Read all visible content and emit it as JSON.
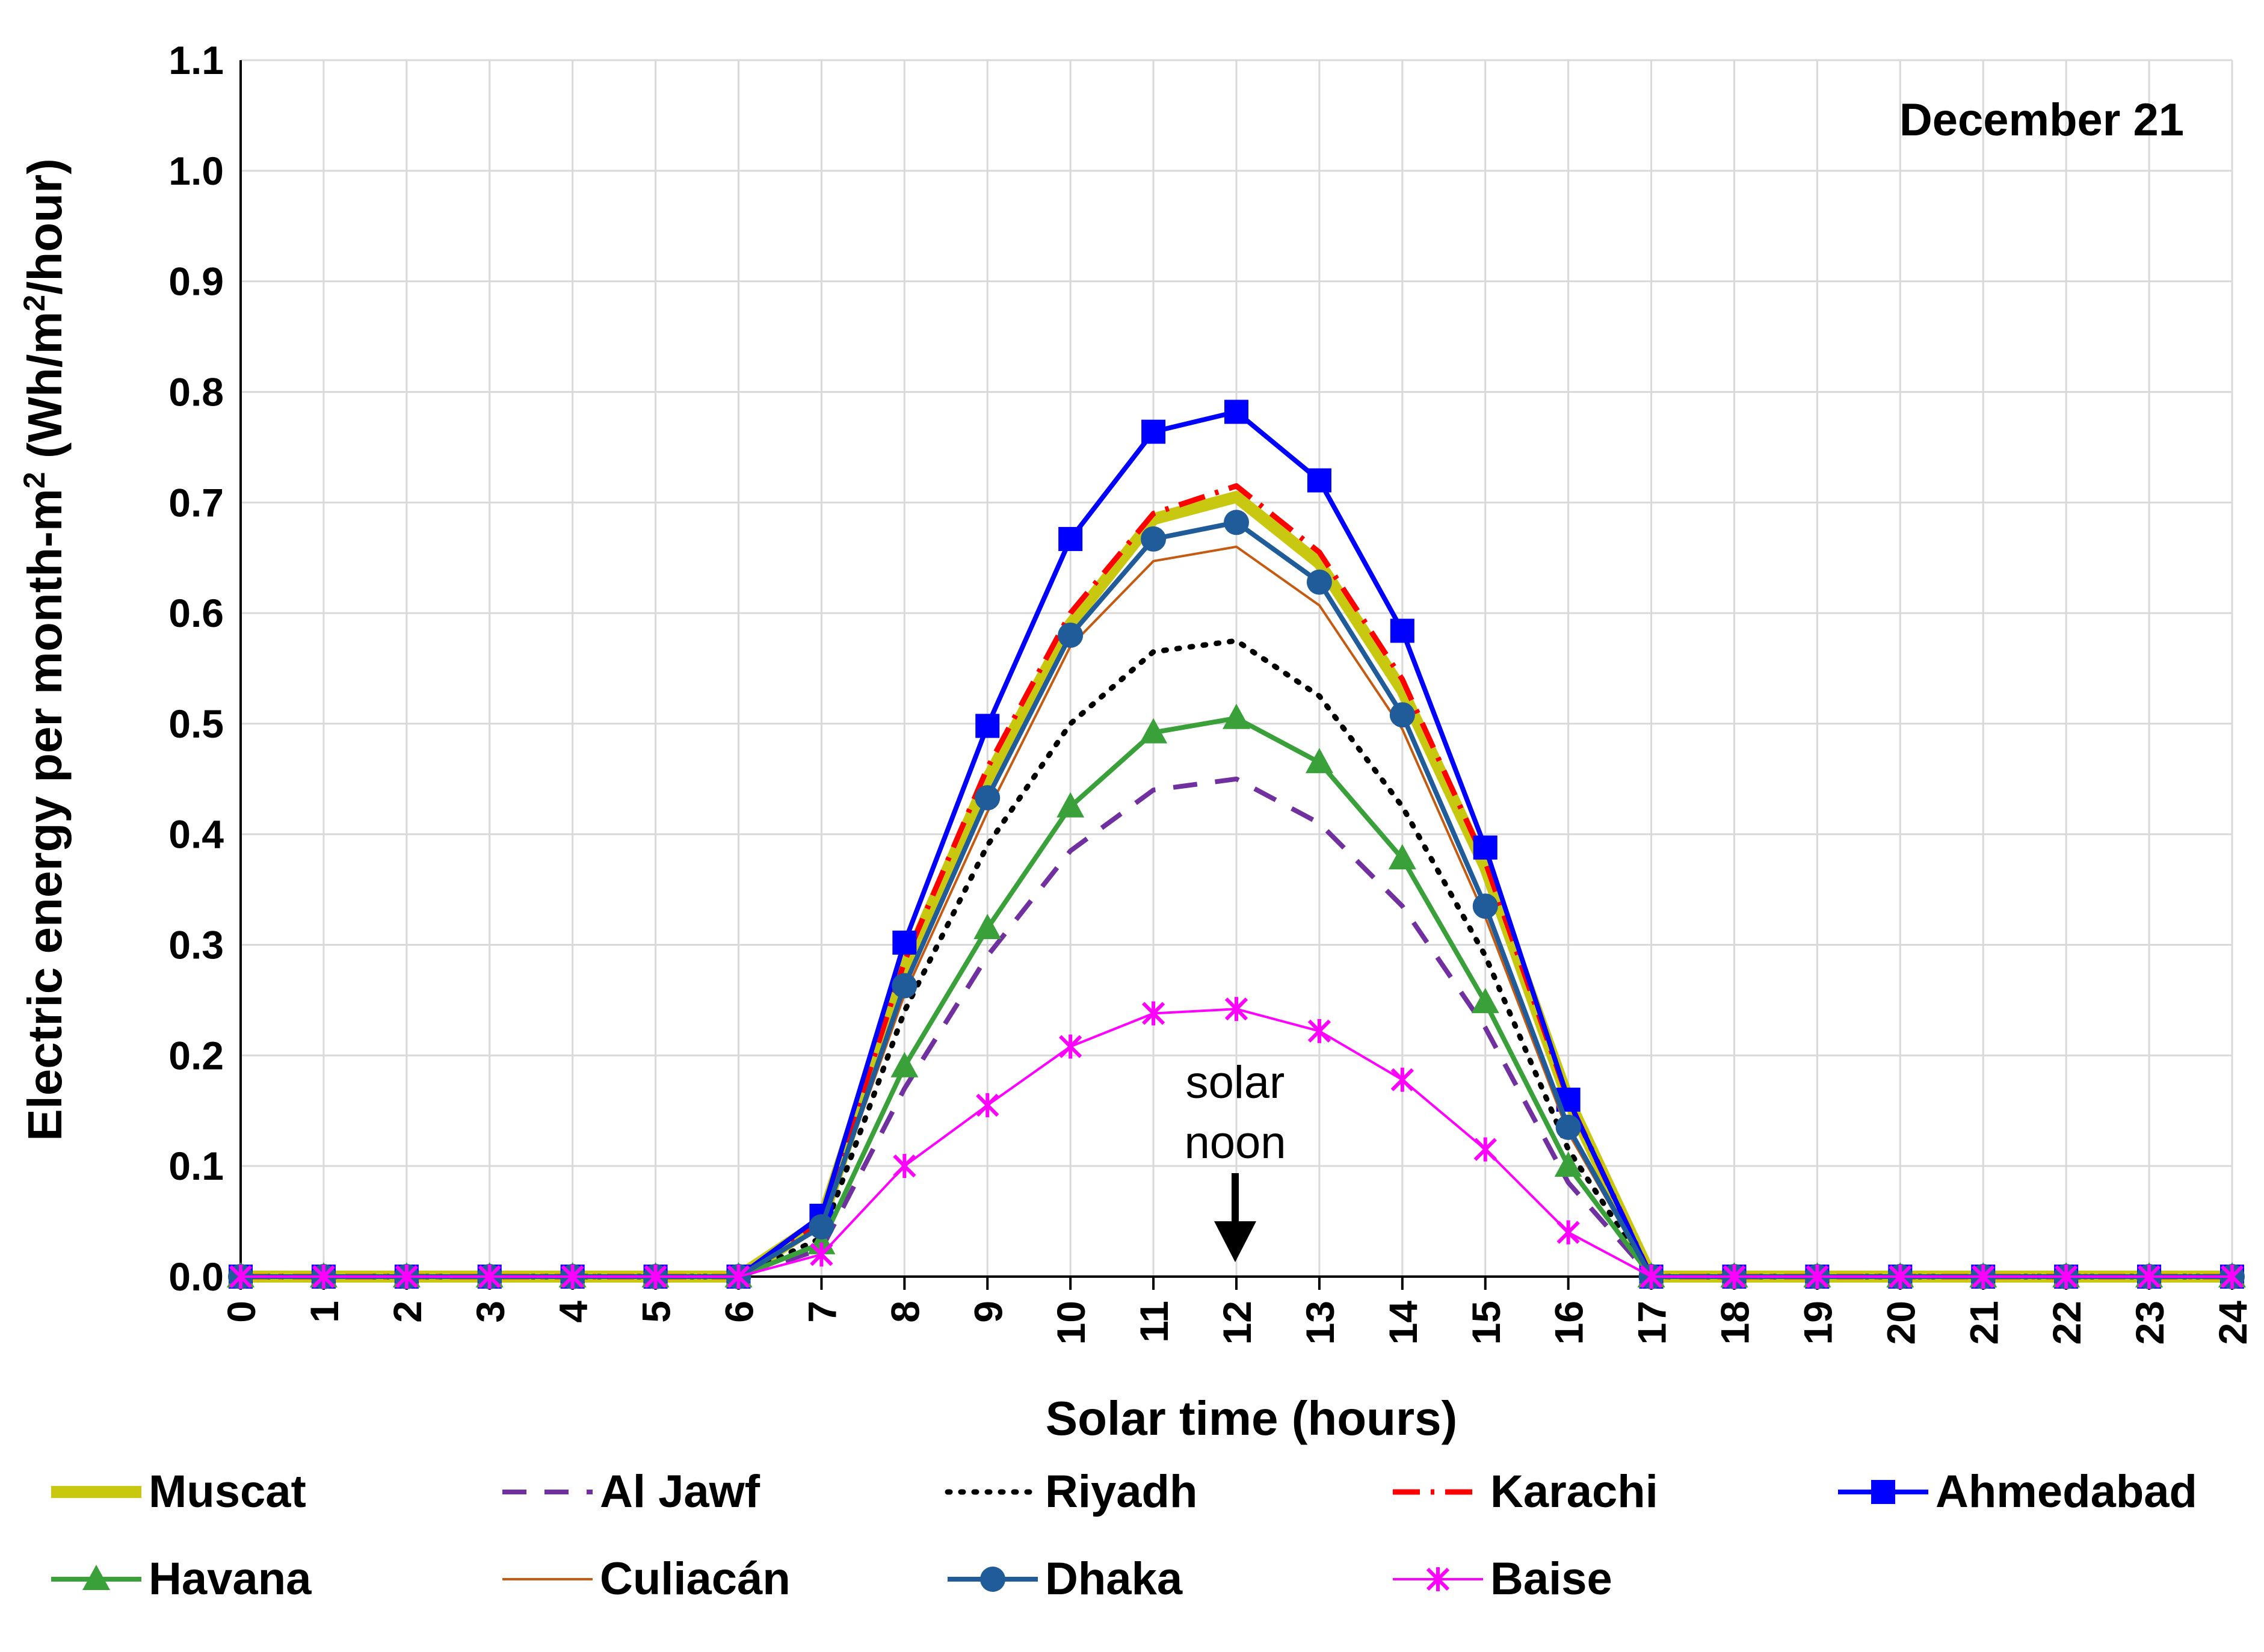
{
  "chart_data": {
    "type": "line",
    "title": "",
    "annotation": "December 21",
    "noon_label": [
      "solar",
      "noon"
    ],
    "xlabel": "Solar time (hours)",
    "ylabel_parts": [
      "Electric energy per month-m",
      "2",
      " (Wh/m",
      "2",
      "/hour)"
    ],
    "x": [
      0,
      1,
      2,
      3,
      4,
      5,
      6,
      7,
      8,
      9,
      10,
      11,
      12,
      13,
      14,
      15,
      16,
      17,
      18,
      19,
      20,
      21,
      22,
      23,
      24
    ],
    "xlim": [
      0,
      24
    ],
    "ylim": [
      0,
      1.1
    ],
    "yticks": [
      "0.0",
      "0.1",
      "0.2",
      "0.3",
      "0.4",
      "0.5",
      "0.6",
      "0.7",
      "0.8",
      "0.9",
      "1.0",
      "1.1"
    ],
    "grid": true,
    "legend_position": "bottom",
    "series": [
      {
        "name": "Muscat",
        "color": "#c8c810",
        "style": "thick",
        "marker": "none",
        "values": [
          0,
          0,
          0,
          0,
          0,
          0,
          0,
          0.05,
          0.28,
          0.45,
          0.59,
          0.685,
          0.705,
          0.645,
          0.53,
          0.37,
          0.16,
          0,
          0,
          0,
          0,
          0,
          0,
          0,
          0
        ]
      },
      {
        "name": "Al Jawf",
        "color": "#7030a0",
        "style": "dashed",
        "marker": "none",
        "values": [
          0,
          0,
          0,
          0,
          0,
          0,
          0,
          0.025,
          0.17,
          0.29,
          0.385,
          0.44,
          0.45,
          0.41,
          0.335,
          0.225,
          0.085,
          0,
          0,
          0,
          0,
          0,
          0,
          0,
          0
        ]
      },
      {
        "name": "Riyadh",
        "color": "#000000",
        "style": "dotted",
        "marker": "none",
        "values": [
          0,
          0,
          0,
          0,
          0,
          0,
          0,
          0.035,
          0.24,
          0.39,
          0.5,
          0.565,
          0.575,
          0.525,
          0.425,
          0.29,
          0.115,
          0,
          0,
          0,
          0,
          0,
          0,
          0,
          0
        ]
      },
      {
        "name": "Karachi",
        "color": "#ff0000",
        "style": "dashdot",
        "marker": "none",
        "values": [
          0,
          0,
          0,
          0,
          0,
          0,
          0,
          0.05,
          0.285,
          0.46,
          0.6,
          0.69,
          0.715,
          0.655,
          0.54,
          0.375,
          0.16,
          0,
          0,
          0,
          0,
          0,
          0,
          0,
          0
        ]
      },
      {
        "name": "Ahmedabad",
        "color": "#0000ff",
        "style": "solid",
        "marker": "square",
        "values": [
          0,
          0,
          0,
          0,
          0,
          0,
          0,
          0.055,
          0.302,
          0.498,
          0.667,
          0.764,
          0.782,
          0.72,
          0.584,
          0.388,
          0.16,
          0,
          0,
          0,
          0,
          0,
          0,
          0,
          0
        ]
      },
      {
        "name": "Havana",
        "color": "#3aa03a",
        "style": "solid",
        "marker": "triangle",
        "values": [
          0,
          0,
          0,
          0,
          0,
          0,
          0,
          0.03,
          0.19,
          0.315,
          0.425,
          0.492,
          0.505,
          0.465,
          0.378,
          0.248,
          0.1,
          0,
          0,
          0,
          0,
          0,
          0,
          0,
          0
        ]
      },
      {
        "name": "Culiacán",
        "color": "#c55a11",
        "style": "thin",
        "marker": "none",
        "values": [
          0,
          0,
          0,
          0,
          0,
          0,
          0,
          0.045,
          0.255,
          0.42,
          0.57,
          0.647,
          0.66,
          0.607,
          0.495,
          0.325,
          0.13,
          0,
          0,
          0,
          0,
          0,
          0,
          0,
          0
        ]
      },
      {
        "name": "Dhaka",
        "color": "#1f5c99",
        "style": "solid",
        "marker": "circle",
        "values": [
          0,
          0,
          0,
          0,
          0,
          0,
          0,
          0.045,
          0.263,
          0.433,
          0.58,
          0.667,
          0.682,
          0.628,
          0.508,
          0.335,
          0.135,
          0,
          0,
          0,
          0,
          0,
          0,
          0,
          0
        ]
      },
      {
        "name": "Baise",
        "color": "#ff00ff",
        "style": "thin",
        "marker": "star",
        "values": [
          0,
          0,
          0,
          0,
          0,
          0,
          0,
          0.02,
          0.1,
          0.155,
          0.208,
          0.238,
          0.242,
          0.222,
          0.178,
          0.115,
          0.04,
          0,
          0,
          0,
          0,
          0,
          0,
          0,
          0
        ]
      }
    ]
  }
}
